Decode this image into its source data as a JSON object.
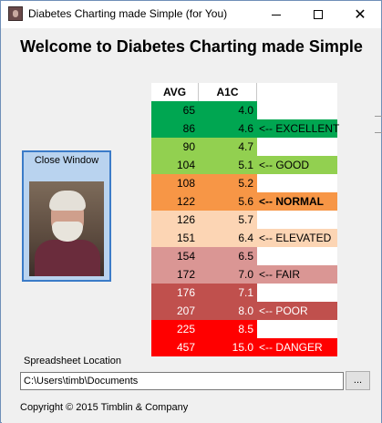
{
  "window": {
    "title": "Diabetes Charting made Simple (for You)",
    "icon": "app-photo-icon"
  },
  "heading": "Welcome to Diabetes Charting made Simple",
  "photo_panel": {
    "label": "Close Window"
  },
  "table": {
    "headers": {
      "avg": "AVG",
      "a1c": "A1C"
    },
    "rows": [
      {
        "avg": "65",
        "a1c": "4.0",
        "label": "",
        "bg": "#00a651",
        "label_bg": "#ffffff",
        "bold": false
      },
      {
        "avg": "86",
        "a1c": "4.6",
        "label": "<-- EXCELLENT",
        "bg": "#00a651",
        "label_bg": "#00a651",
        "bold": false
      },
      {
        "avg": "90",
        "a1c": "4.7",
        "label": "",
        "bg": "#92d050",
        "label_bg": "#ffffff",
        "bold": false
      },
      {
        "avg": "104",
        "a1c": "5.1",
        "label": "<-- GOOD",
        "bg": "#92d050",
        "label_bg": "#92d050",
        "bold": false
      },
      {
        "avg": "108",
        "a1c": "5.2",
        "label": "",
        "bg": "#f79646",
        "label_bg": "#ffffff",
        "bold": false
      },
      {
        "avg": "122",
        "a1c": "5.6",
        "label": "<-- NORMAL",
        "bg": "#f79646",
        "label_bg": "#f79646",
        "bold": true
      },
      {
        "avg": "126",
        "a1c": "5.7",
        "label": "",
        "bg": "#fcd5b4",
        "label_bg": "#ffffff",
        "bold": false
      },
      {
        "avg": "151",
        "a1c": "6.4",
        "label": "<-- ELEVATED",
        "bg": "#fcd5b4",
        "label_bg": "#fcd5b4",
        "bold": false
      },
      {
        "avg": "154",
        "a1c": "6.5",
        "label": "",
        "bg": "#da9694",
        "label_bg": "#ffffff",
        "bold": false
      },
      {
        "avg": "172",
        "a1c": "7.0",
        "label": "<-- FAIR",
        "bg": "#da9694",
        "label_bg": "#da9694",
        "bold": false
      },
      {
        "avg": "176",
        "a1c": "7.1",
        "label": "",
        "bg": "#c0504d",
        "label_bg": "#ffffff",
        "bold": false,
        "light_text": true
      },
      {
        "avg": "207",
        "a1c": "8.0",
        "label": "<-- POOR",
        "bg": "#c0504d",
        "label_bg": "#c0504d",
        "bold": false,
        "light_text": true
      },
      {
        "avg": "225",
        "a1c": "8.5",
        "label": "",
        "bg": "#ff0000",
        "label_bg": "#ffffff",
        "bold": false,
        "light_text": true
      },
      {
        "avg": "457",
        "a1c": "15.0",
        "label": "<-- DANGER",
        "bg": "#ff0000",
        "label_bg": "#ff0000",
        "bold": false,
        "light_text": true
      }
    ]
  },
  "spreadsheet": {
    "label": "Spreadsheet Location",
    "path": "C:\\Users\\timb\\Documents",
    "browse_label": "..."
  },
  "footer": {
    "copyright": "Copyright © 2015 Timblin & Company"
  }
}
